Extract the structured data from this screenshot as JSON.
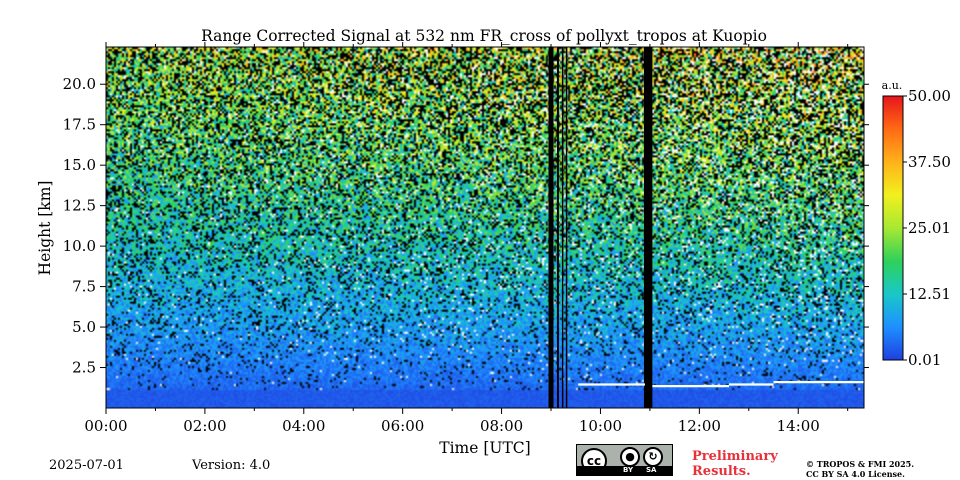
{
  "chart_data": {
    "type": "heatmap",
    "title": "Range Corrected Signal at 532 nm FR_cross of pollyxt_tropos at Kuopio",
    "xlabel": "Time [UTC]",
    "ylabel": "Height [km]",
    "x_ticks": [
      "00:00",
      "02:00",
      "04:00",
      "06:00",
      "08:00",
      "10:00",
      "12:00",
      "14:00"
    ],
    "x_tick_hours": [
      0,
      2,
      4,
      6,
      8,
      10,
      12,
      14
    ],
    "xlim_hours": [
      0,
      15.33
    ],
    "y_ticks": [
      "2.5",
      "5.0",
      "7.5",
      "10.0",
      "12.5",
      "15.0",
      "17.5",
      "20.0"
    ],
    "y_tick_values": [
      2.5,
      5.0,
      7.5,
      10.0,
      12.5,
      15.0,
      17.5,
      20.0
    ],
    "ylim_km": [
      0,
      22.3
    ],
    "colorbar": {
      "unit": "a.u.",
      "ticks": [
        "50.00",
        "37.50",
        "25.01",
        "12.51",
        "0.01"
      ],
      "tick_values": [
        50.0,
        37.5,
        25.01,
        12.51,
        0.01
      ],
      "range": [
        0.01,
        50.0
      ],
      "colors": [
        "#1f3fe0",
        "#1e90ff",
        "#19c8c8",
        "#2ed15a",
        "#a8e832",
        "#f2f01e",
        "#ffb21a",
        "#ff6a14",
        "#e8141c"
      ]
    },
    "no_data_gaps_hours": [
      [
        8.95,
        9.05
      ],
      [
        9.12,
        9.16
      ],
      [
        9.22,
        9.25
      ],
      [
        9.3,
        9.33
      ],
      [
        10.88,
        11.05
      ]
    ],
    "cloud_layer": {
      "description_color": "#ffffff",
      "segments": [
        {
          "from_hour": 9.55,
          "to_hour": 10.9,
          "height_km": 1.45
        },
        {
          "from_hour": 11.05,
          "to_hour": 12.6,
          "height_km": 1.35
        },
        {
          "from_hour": 12.6,
          "to_hour": 13.5,
          "height_km": 1.45
        },
        {
          "from_hour": 13.5,
          "to_hour": 15.33,
          "height_km": 1.6
        }
      ]
    }
  },
  "footer": {
    "date": "2025-07-01",
    "version": "Version: 4.0",
    "preliminary": "Preliminary Results.",
    "copyright_line1": "© TROPOS & FMI 2025.",
    "copyright_line2": "CC BY SA 4.0 License.",
    "license_badge": {
      "cc": "cc",
      "by": "BY",
      "sa": "SA"
    },
    "accent_color": "#e8303a"
  }
}
